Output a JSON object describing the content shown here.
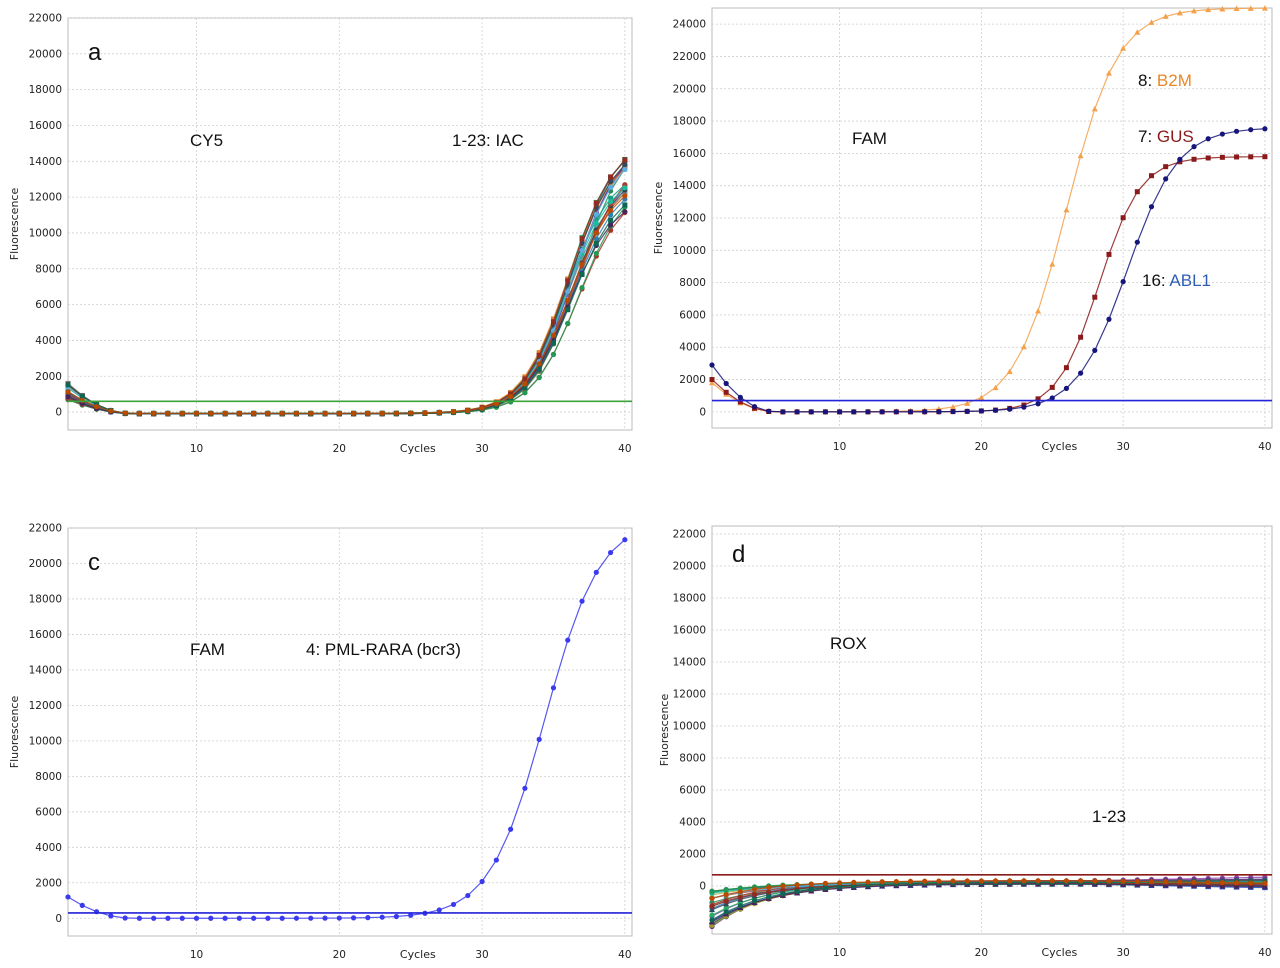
{
  "chart_data": [
    {
      "type": "line",
      "panel_letter": "a",
      "annotations": [
        "CY5",
        "1-23: IAC"
      ],
      "xlabel": "Cycles",
      "ylabel": "Fluorescence",
      "xlim": [
        1,
        40.5
      ],
      "ylim": [
        -1000,
        22000
      ],
      "xticks": [
        10,
        20,
        30,
        40
      ],
      "yticks": [
        0,
        2000,
        4000,
        6000,
        8000,
        10000,
        12000,
        14000,
        16000,
        18000,
        20000,
        22000
      ],
      "grid": true,
      "threshold": {
        "value": 600,
        "color": "#3aa33a"
      },
      "series_group": {
        "count": 23,
        "colors": [
          "#1f4fbf",
          "#c0392b",
          "#2e8b57",
          "#8e44ad",
          "#d35400",
          "#16a085",
          "#7f8c8d",
          "#2c3e50",
          "#b03a2e",
          "#27ae60",
          "#2980b9",
          "#a93226",
          "#117a65",
          "#6c3483",
          "#1abc9c",
          "#e67e22",
          "#34495e",
          "#5dade2",
          "#922b21",
          "#229954",
          "#4a235a",
          "#0e6655",
          "#ba4a00"
        ],
        "start_range": [
          700,
          1900
        ],
        "end_range": [
          11500,
          15000
        ],
        "midpoint_range": [
          35.8,
          36.8
        ],
        "slope": 0.62
      }
    },
    {
      "type": "line",
      "panel_letter": "",
      "annotations": [
        "FAM"
      ],
      "xlabel": "Cycles",
      "ylabel": "Fluorescence",
      "xlim": [
        1,
        40.5
      ],
      "ylim": [
        -1000,
        25000
      ],
      "xticks": [
        10,
        20,
        30,
        40
      ],
      "yticks": [
        0,
        2000,
        4000,
        6000,
        8000,
        10000,
        12000,
        14000,
        16000,
        18000,
        20000,
        22000,
        24000
      ],
      "grid": true,
      "threshold": {
        "value": 700,
        "color": "#2323d8"
      },
      "series": [
        {
          "name_prefix": "8: ",
          "name": "B2M",
          "color": "#f5a04a",
          "marker": "triangle",
          "start": 1800,
          "max": 25000,
          "mid": 26.0,
          "slope": 0.55
        },
        {
          "name_prefix": "7: ",
          "name": "GUS",
          "color": "#8b1a1a",
          "marker": "square",
          "start": 2000,
          "max": 15800,
          "mid": 28.3,
          "slope": 0.68
        },
        {
          "name_prefix": "16: ",
          "name": "ABL1",
          "color": "#15157a",
          "marker": "circle",
          "start": 2900,
          "max": 17600,
          "mid": 30.3,
          "slope": 0.56
        }
      ],
      "label_colors": {
        "B2M": "#e8872a",
        "GUS": "#8b1a1a",
        "ABL1": "#2f5db3"
      }
    },
    {
      "type": "line",
      "panel_letter": "c",
      "annotations": [
        "FAM",
        "4: PML-RARA (bcr3)"
      ],
      "xlabel": "Cycles",
      "ylabel": "Fluorescence",
      "xlim": [
        1,
        40.5
      ],
      "ylim": [
        -1000,
        22000
      ],
      "xticks": [
        10,
        20,
        30,
        40
      ],
      "yticks": [
        0,
        2000,
        4000,
        6000,
        8000,
        10000,
        12000,
        14000,
        16000,
        18000,
        20000,
        22000
      ],
      "grid": true,
      "threshold": {
        "value": 300,
        "color": "#2323d8"
      },
      "series": [
        {
          "name": "PML-RARA (bcr3)",
          "color": "#3a3af0",
          "marker": "circle",
          "start": 1200,
          "max": 22500,
          "mid": 34.4,
          "slope": 0.52
        }
      ]
    },
    {
      "type": "line",
      "panel_letter": "d",
      "annotations": [
        "ROX",
        "1-23"
      ],
      "xlabel": "Cycles",
      "ylabel": "Fluorescence",
      "xlim": [
        1,
        40.5
      ],
      "ylim": [
        -3000,
        22500
      ],
      "xticks": [
        10,
        20,
        30,
        40
      ],
      "yticks": [
        0,
        2000,
        4000,
        6000,
        8000,
        10000,
        12000,
        14000,
        16000,
        18000,
        20000,
        22000
      ],
      "grid": true,
      "threshold": {
        "value": 700,
        "color": "#8b1a1a"
      },
      "series_group": {
        "count": 23,
        "colors": [
          "#1f4fbf",
          "#c0392b",
          "#2e8b57",
          "#8e44ad",
          "#b7b34a",
          "#16a085",
          "#7f8c8d",
          "#2c3e50",
          "#b03a2e",
          "#27ae60",
          "#2980b9",
          "#a93226",
          "#117a65",
          "#6c3483",
          "#1abc9c",
          "#9a9a30",
          "#34495e",
          "#5dade2",
          "#922b21",
          "#229954",
          "#4a235a",
          "#0e6655",
          "#ba4a00"
        ],
        "start_range": [
          -2800,
          -300
        ],
        "plateau_range": [
          100,
          350
        ]
      }
    }
  ]
}
